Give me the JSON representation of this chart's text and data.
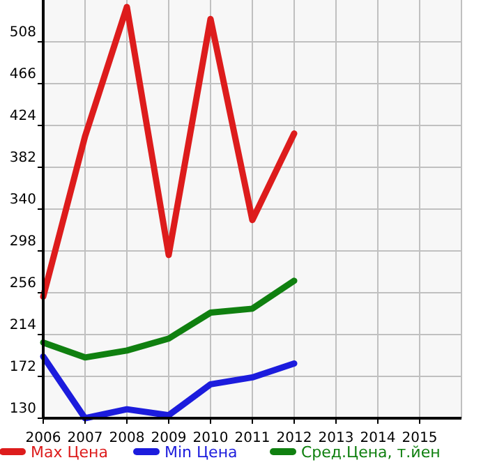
{
  "chart_data": {
    "type": "line",
    "x": [
      2006,
      2007,
      2008,
      2009,
      2010,
      2011,
      2012
    ],
    "xlim": [
      2006,
      2016
    ],
    "xticks": [
      2006,
      2007,
      2008,
      2009,
      2010,
      2011,
      2012,
      2013,
      2014,
      2015
    ],
    "ylim": [
      130,
      550
    ],
    "yticks": [
      130,
      172,
      214,
      256,
      298,
      340,
      382,
      424,
      466,
      508
    ],
    "grid": true,
    "legend": "bottom",
    "marker": "none",
    "line_style": "solid",
    "series": [
      {
        "name": "Max Цена",
        "color": "#dd1c1c",
        "values": [
          252,
          413,
          543,
          294,
          531,
          329,
          416
        ]
      },
      {
        "name": "Min Цена",
        "color": "#1c1cdd",
        "values": [
          192,
          130,
          139,
          133,
          164,
          171,
          185
        ]
      },
      {
        "name": "Сред.Цена, т.йен",
        "color": "#108010",
        "values": [
          206,
          191,
          198,
          210,
          236,
          240,
          268
        ]
      }
    ]
  }
}
